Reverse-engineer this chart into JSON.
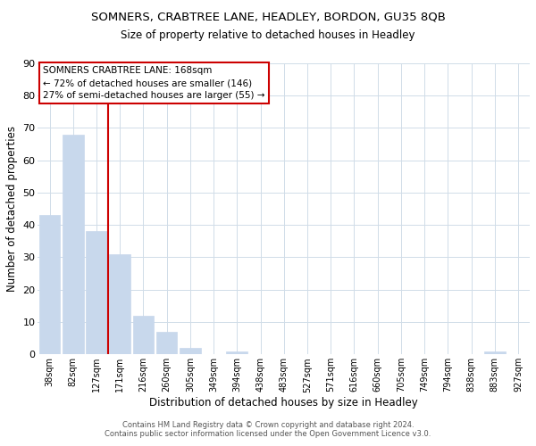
{
  "title": "SOMNERS, CRABTREE LANE, HEADLEY, BORDON, GU35 8QB",
  "subtitle": "Size of property relative to detached houses in Headley",
  "xlabel": "Distribution of detached houses by size in Headley",
  "ylabel": "Number of detached properties",
  "bar_color": "#c8d8ec",
  "bar_edge_color": "#c8d8ec",
  "categories": [
    "38sqm",
    "82sqm",
    "127sqm",
    "171sqm",
    "216sqm",
    "260sqm",
    "305sqm",
    "349sqm",
    "394sqm",
    "438sqm",
    "483sqm",
    "527sqm",
    "571sqm",
    "616sqm",
    "660sqm",
    "705sqm",
    "749sqm",
    "794sqm",
    "838sqm",
    "883sqm",
    "927sqm"
  ],
  "values": [
    43,
    68,
    38,
    31,
    12,
    7,
    2,
    0,
    1,
    0,
    0,
    0,
    0,
    0,
    0,
    0,
    0,
    0,
    0,
    1,
    0
  ],
  "ylim": [
    0,
    90
  ],
  "yticks": [
    0,
    10,
    20,
    30,
    40,
    50,
    60,
    70,
    80,
    90
  ],
  "vline_index": 3,
  "vline_color": "#cc0000",
  "annotation_title": "SOMNERS CRABTREE LANE: 168sqm",
  "annotation_line1": "← 72% of detached houses are smaller (146)",
  "annotation_line2": "27% of semi-detached houses are larger (55) →",
  "annotation_box_color": "#ffffff",
  "annotation_box_edgecolor": "#cc0000",
  "footer1": "Contains HM Land Registry data © Crown copyright and database right 2024.",
  "footer2": "Contains public sector information licensed under the Open Government Licence v3.0.",
  "bg_color": "#ffffff",
  "grid_color": "#d0dce8"
}
